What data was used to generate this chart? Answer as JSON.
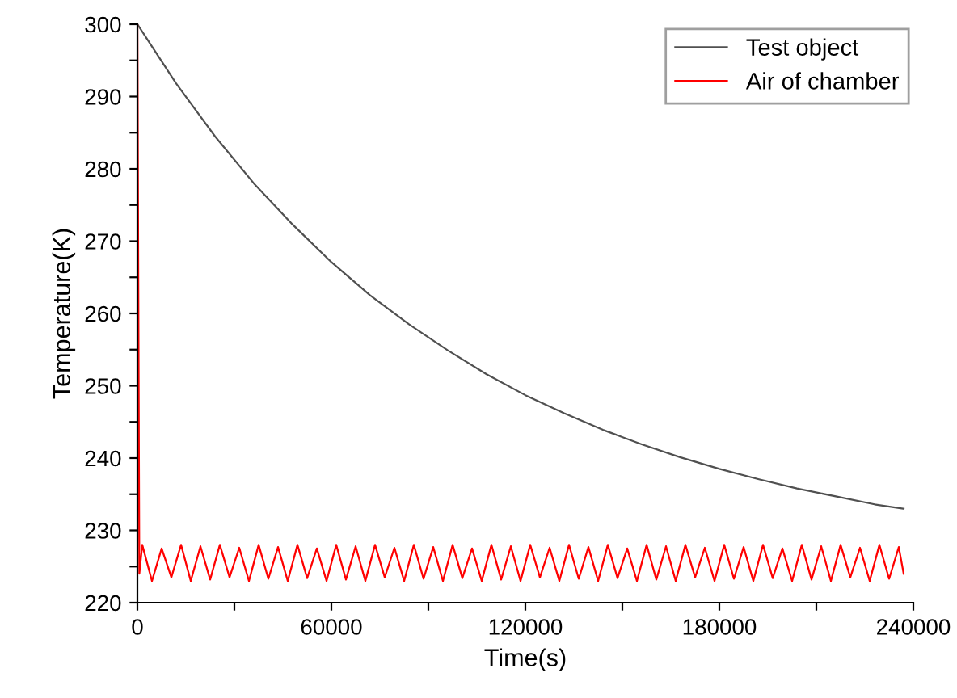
{
  "chart_data": {
    "type": "line",
    "xlabel": "Time(s)",
    "ylabel": "Temperature(K)",
    "xlim": [
      0,
      240000
    ],
    "ylim": [
      220,
      300
    ],
    "xticks": [
      0,
      {
        "value": 30000,
        "label": null
      },
      60000,
      {
        "value": 90000,
        "label": null
      },
      120000,
      {
        "value": 150000,
        "label": null
      },
      180000,
      {
        "value": 210000,
        "label": null
      },
      240000
    ],
    "yticks": [
      220,
      {
        "value": 225,
        "label": null
      },
      230,
      {
        "value": 235,
        "label": null
      },
      240,
      {
        "value": 245,
        "label": null
      },
      250,
      {
        "value": 255,
        "label": null
      },
      260,
      {
        "value": 265,
        "label": null
      },
      270,
      {
        "value": 275,
        "label": null
      },
      280,
      {
        "value": 285,
        "label": null
      },
      290,
      {
        "value": 295,
        "label": null
      },
      300
    ],
    "grid": false,
    "legend": "top right",
    "marker": "none",
    "line_style": "solid",
    "series": [
      {
        "name": "Test object",
        "color": "#505050",
        "x": [
          0,
          12000,
          24000,
          36000,
          48000,
          60000,
          72000,
          84000,
          96000,
          108000,
          120000,
          132000,
          144000,
          156000,
          168000,
          180000,
          192000,
          204000,
          216000,
          228000,
          237000
        ],
        "values": [
          300,
          291.8,
          284.5,
          278.0,
          272.3,
          267.1,
          262.5,
          258.5,
          254.9,
          251.6,
          248.7,
          246.2,
          243.9,
          241.9,
          240.1,
          238.5,
          237.1,
          235.8,
          234.7,
          233.6,
          233.0
        ]
      },
      {
        "name": "Air of chamber",
        "color": "#ff0000",
        "x": [
          0,
          600,
          1500,
          4500,
          7500,
          10500,
          13500,
          16500,
          19500,
          22500,
          25500,
          28500,
          31500,
          34500,
          37500,
          40500,
          43500,
          46500,
          49500,
          52500,
          55500,
          58500,
          61500,
          64500,
          67500,
          70500,
          73500,
          76500,
          79500,
          82500,
          85500,
          88500,
          91500,
          94500,
          97500,
          100500,
          103500,
          106500,
          109500,
          112500,
          115500,
          118500,
          121500,
          124500,
          127500,
          130500,
          133500,
          136500,
          139500,
          142500,
          145500,
          148500,
          151500,
          154500,
          157500,
          160500,
          163500,
          166500,
          169500,
          172500,
          175500,
          178500,
          181500,
          184500,
          187500,
          190500,
          193500,
          196500,
          199500,
          202500,
          205500,
          208500,
          211500,
          214500,
          217500,
          220500,
          223500,
          226500,
          229500,
          232500,
          235500,
          237000
        ],
        "values": [
          300,
          224,
          228,
          223,
          227.5,
          223.5,
          228,
          223,
          227.8,
          223.2,
          228,
          223.5,
          227.6,
          223,
          228,
          223.3,
          227.7,
          223,
          228,
          223.4,
          227.5,
          223,
          228,
          223.2,
          227.8,
          223,
          228,
          223.5,
          227.6,
          223,
          228,
          223.3,
          227.7,
          223,
          228,
          223.4,
          227.5,
          223,
          228,
          223.2,
          227.8,
          223,
          228,
          223.5,
          227.6,
          223,
          228,
          223.3,
          227.7,
          223,
          228,
          223.4,
          227.5,
          223,
          228,
          223.2,
          227.8,
          223,
          228,
          223.5,
          227.6,
          223,
          228,
          223.3,
          227.7,
          223,
          228,
          223.4,
          227.5,
          223,
          228,
          223.2,
          227.8,
          223,
          228,
          223.5,
          227.6,
          223,
          228,
          223.3,
          227.7,
          224
        ]
      }
    ]
  }
}
